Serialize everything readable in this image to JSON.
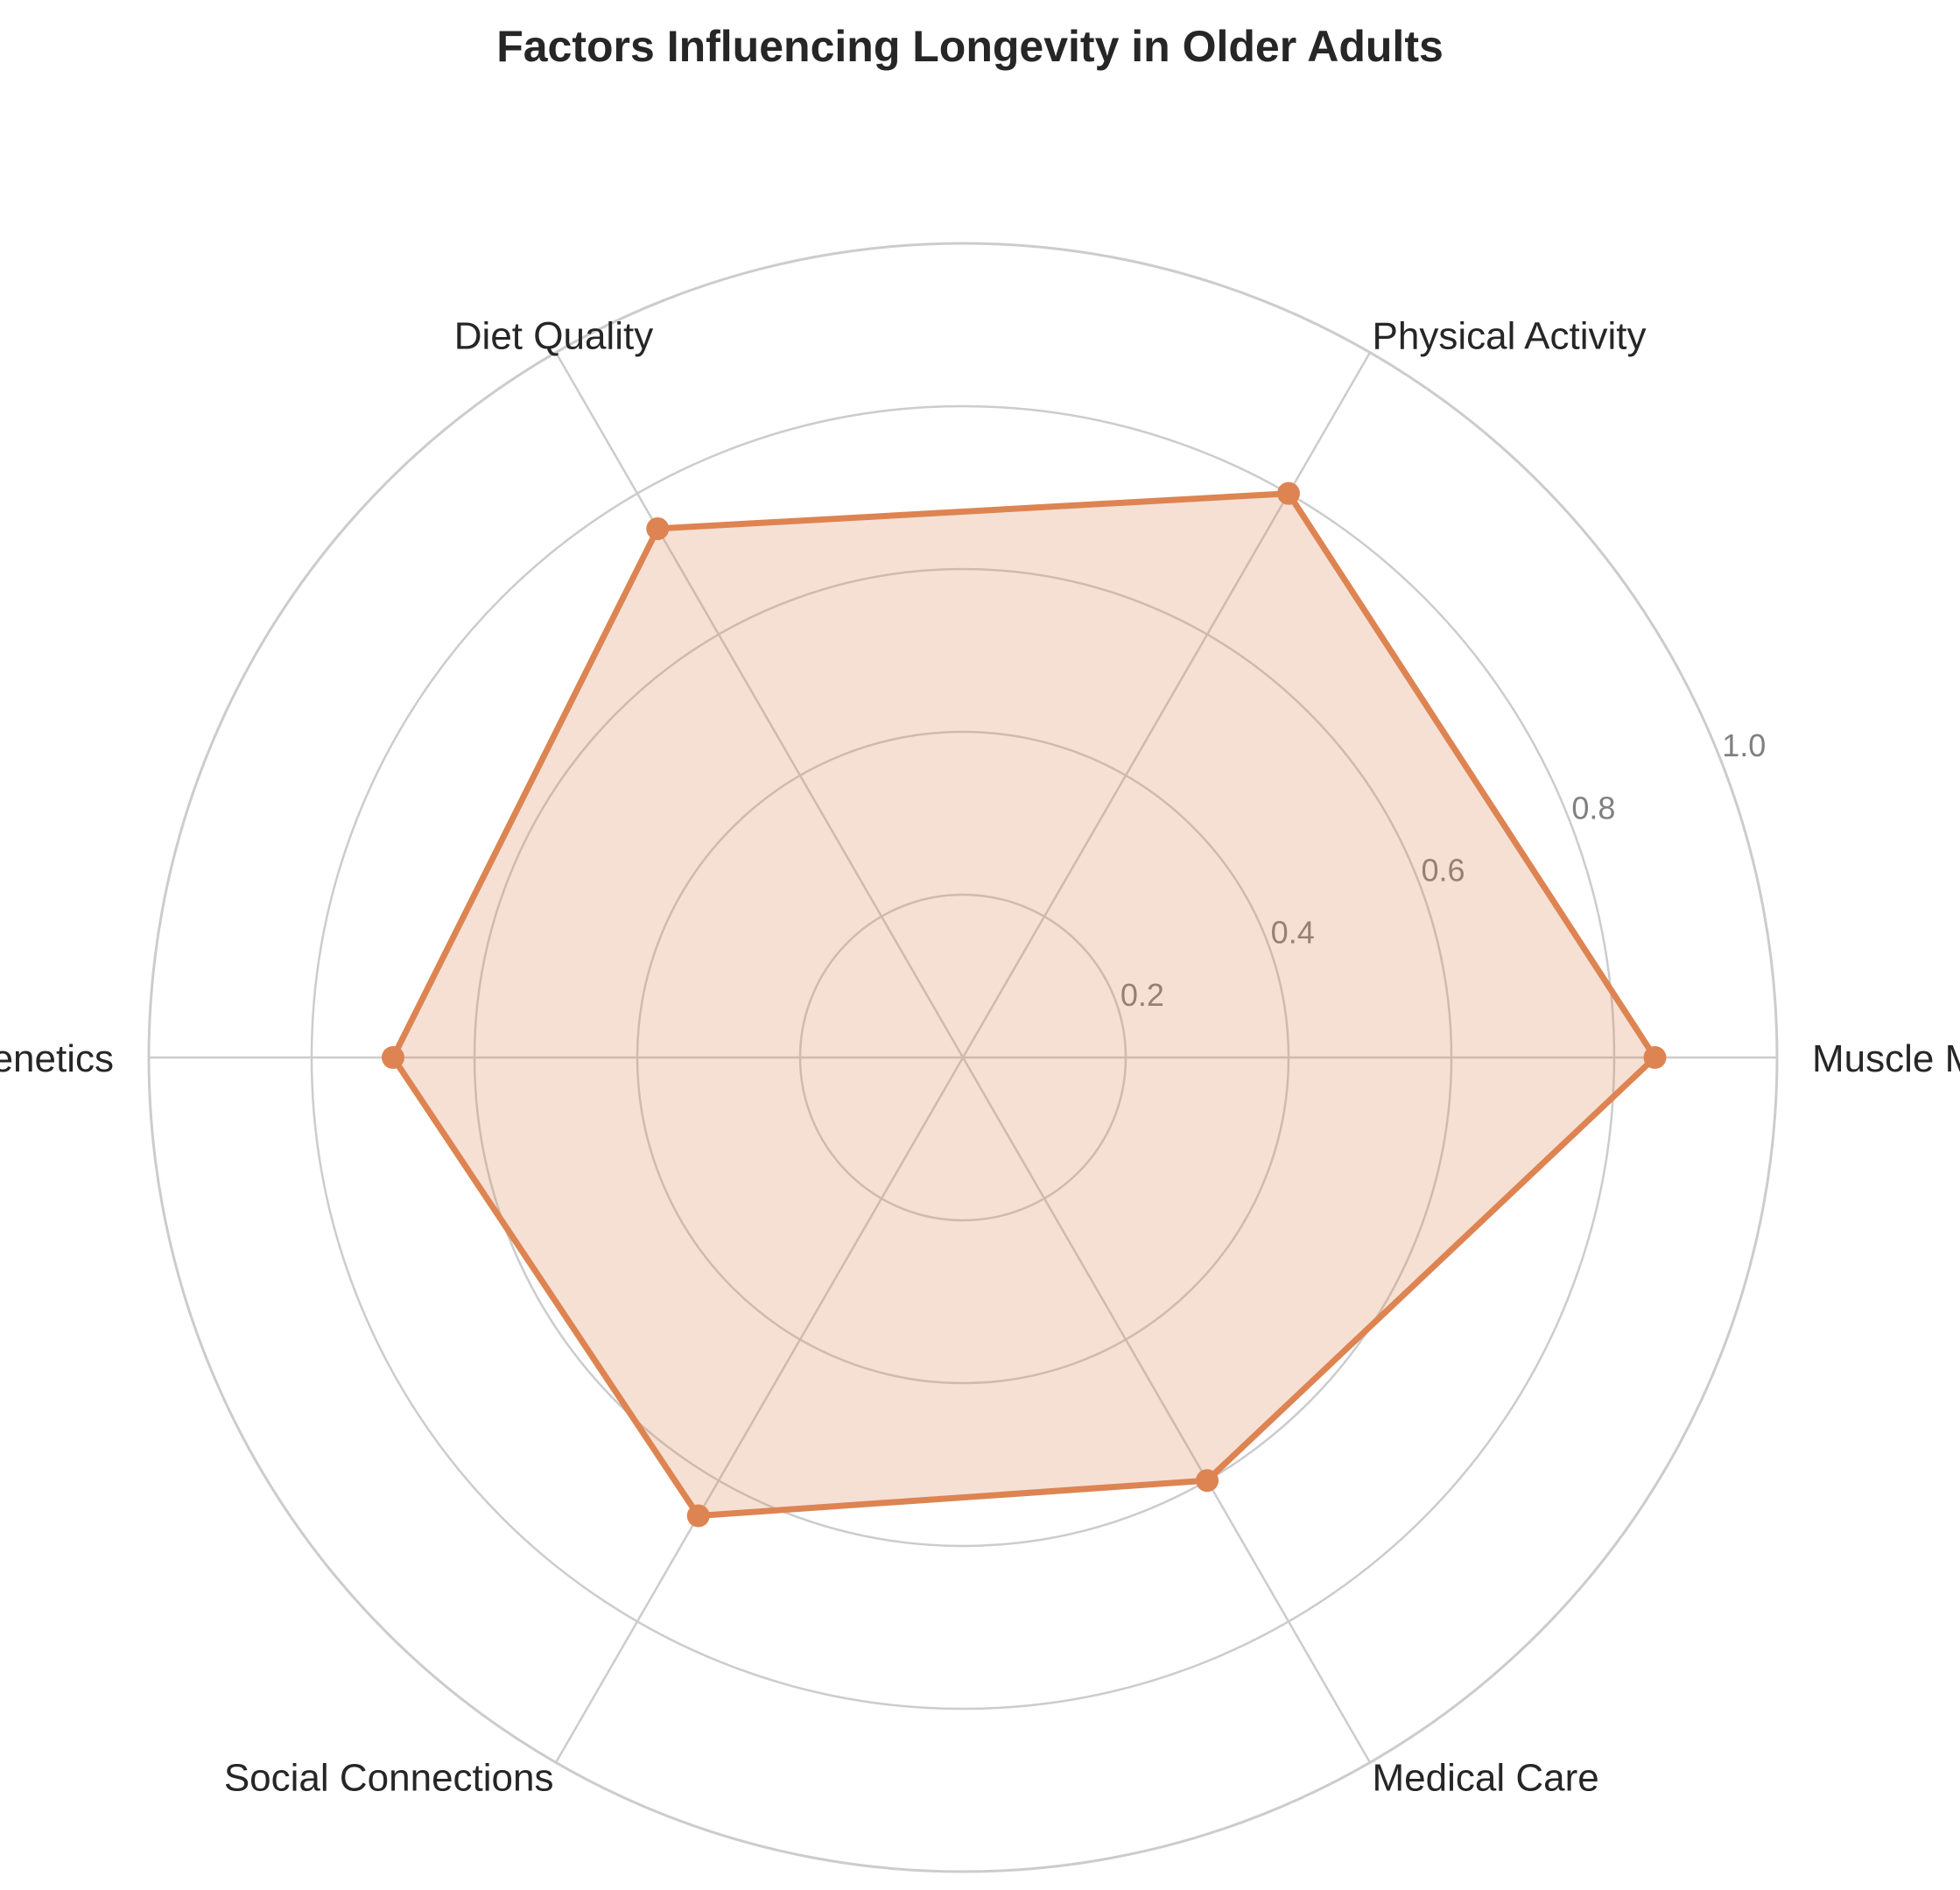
{
  "chart_data": {
    "type": "radar",
    "title": "Factors Influencing Longevity in Older Adults",
    "categories": [
      "Muscle Mass",
      "Physical Activity",
      "Diet Quality",
      "Genetics",
      "Social Connections",
      "Medical Care"
    ],
    "values": [
      0.85,
      0.8,
      0.75,
      0.7,
      0.65,
      0.6
    ],
    "rlim": [
      0,
      1.0
    ],
    "rticks": [
      0.2,
      0.4,
      0.6,
      0.8,
      1.0
    ],
    "rtick_labels": [
      "0.2",
      "0.4",
      "0.6",
      "0.8",
      "1.0"
    ],
    "grid": true,
    "colors": {
      "series_line": "#dd8452",
      "series_fill": "#dd8452",
      "grid": "#cccccc",
      "text": "#262626",
      "tick_text": "#808080"
    }
  }
}
